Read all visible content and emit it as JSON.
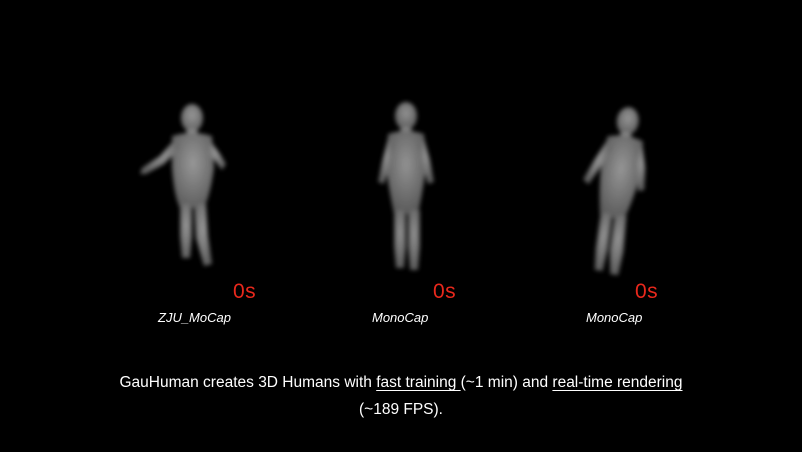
{
  "panels": [
    {
      "timer": "0s",
      "dataset": "ZJU_MoCap",
      "timer_color": "#e8281c"
    },
    {
      "timer": "0s",
      "dataset": "MonoCap",
      "timer_color": "#e8281c"
    },
    {
      "timer": "0s",
      "dataset": "MonoCap",
      "timer_color": "#e8281c"
    }
  ],
  "caption": {
    "part1": "GauHuman creates 3D Humans with ",
    "link1": "fast training ",
    "part2": "(~1 min) and ",
    "link2": "real-time rendering",
    "line2": "(~189 FPS)."
  },
  "colors": {
    "background": "#000000",
    "text": "#ffffff",
    "timer": "#e8281c",
    "figure": "#9a9a9a"
  }
}
